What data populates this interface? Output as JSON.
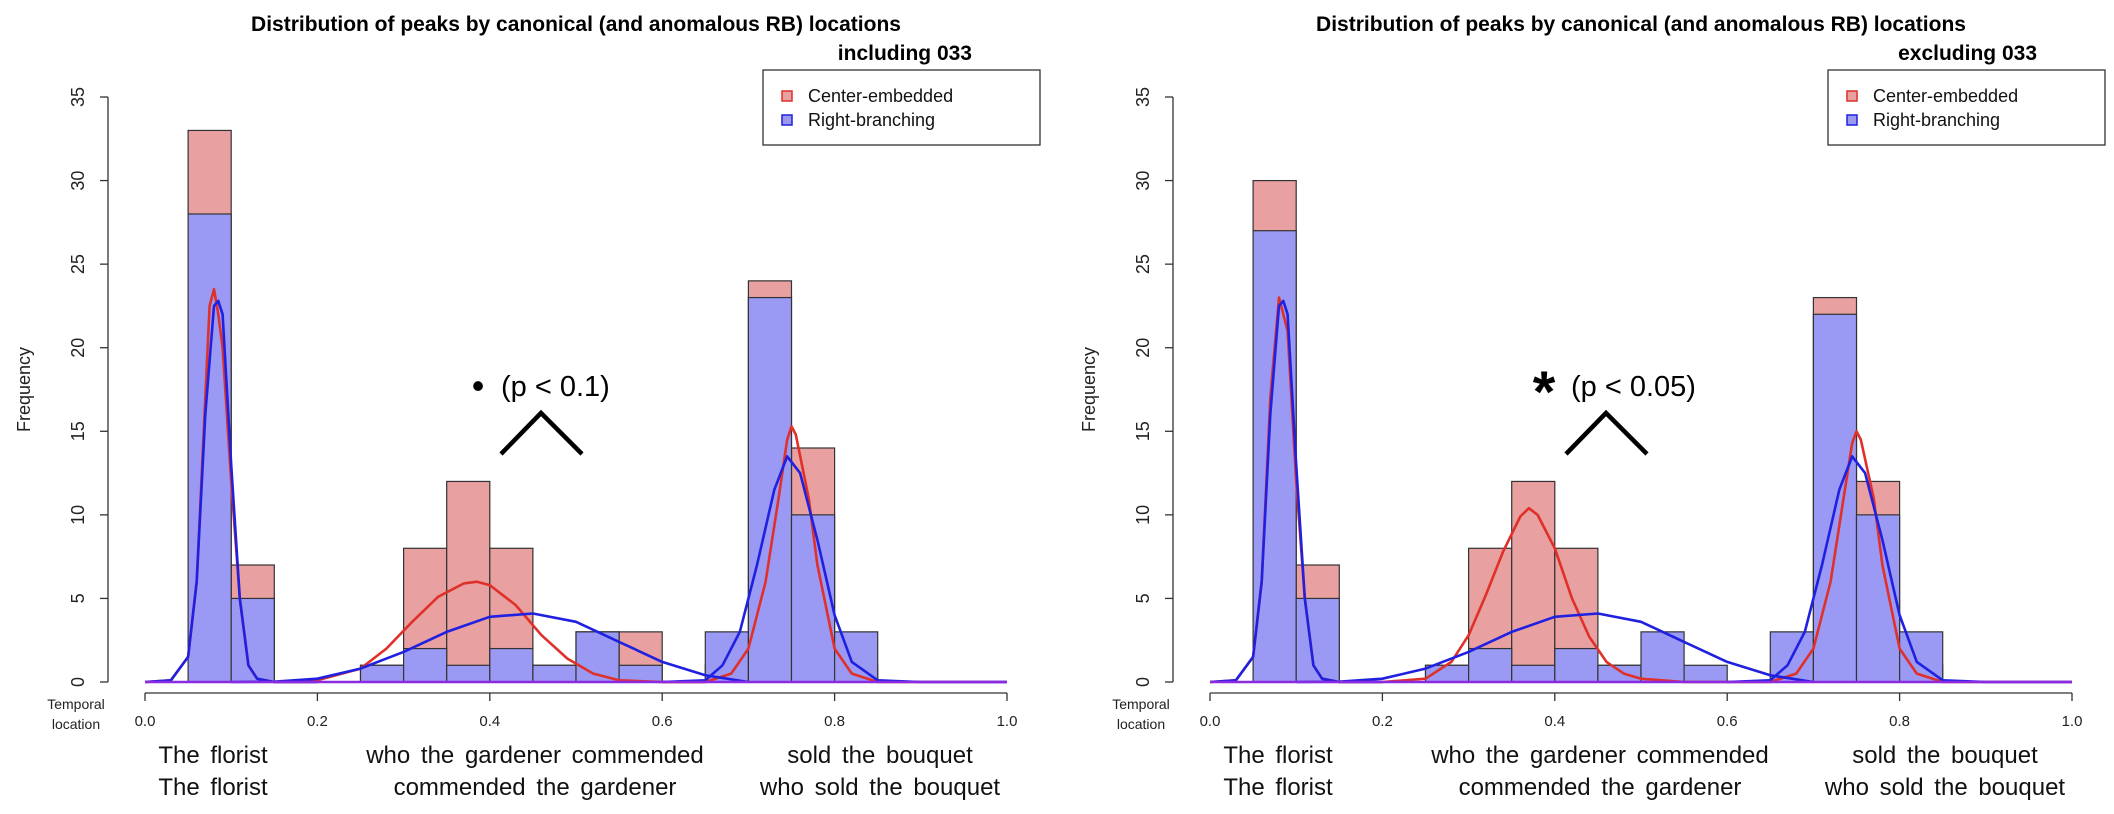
{
  "colors": {
    "ce_fill": "#e8a0a0",
    "rb_fill": "#9a9af5",
    "ce_line": "#e0302a",
    "rb_line": "#2020e0",
    "axis_line": "#8a2be2"
  },
  "chart_data": [
    {
      "type": "bar",
      "title_line1": "Distribution of peaks by canonical (and anomalous RB) locations",
      "title_line2": "including 033",
      "ylabel": "Frequency",
      "xlabel_line1": "Temporal",
      "xlabel_line2": "location",
      "xlim": [
        0,
        1
      ],
      "ylim": [
        0,
        35
      ],
      "xticks": [
        "0.0",
        "0.2",
        "0.4",
        "0.6",
        "0.8",
        "1.0"
      ],
      "yticks": [
        "0",
        "5",
        "10",
        "15",
        "20",
        "25",
        "30",
        "35"
      ],
      "bin_width": 0.05,
      "legend": {
        "position": "top-right",
        "entries": [
          "Center-embedded",
          "Right-branching"
        ]
      },
      "annotation": {
        "symbol": "•",
        "text": "(p < 0.1)"
      },
      "series": [
        {
          "name": "Center-embedded",
          "bins": [
            [
              0.05,
              33
            ],
            [
              0.1,
              7
            ],
            [
              0.25,
              1
            ],
            [
              0.3,
              8
            ],
            [
              0.35,
              12
            ],
            [
              0.4,
              8
            ],
            [
              0.45,
              1
            ],
            [
              0.5,
              3
            ],
            [
              0.55,
              3
            ],
            [
              0.65,
              1
            ],
            [
              0.7,
              24
            ],
            [
              0.75,
              14
            ],
            [
              0.8,
              1
            ]
          ]
        },
        {
          "name": "Right-branching",
          "bins": [
            [
              0.05,
              28
            ],
            [
              0.1,
              5
            ],
            [
              0.25,
              1
            ],
            [
              0.3,
              2
            ],
            [
              0.35,
              1
            ],
            [
              0.4,
              2
            ],
            [
              0.45,
              1
            ],
            [
              0.5,
              3
            ],
            [
              0.55,
              1
            ],
            [
              0.65,
              3
            ],
            [
              0.7,
              23
            ],
            [
              0.75,
              10
            ],
            [
              0.8,
              3
            ]
          ]
        }
      ],
      "curves": {
        "Center-embedded": [
          {
            "x": [
              0.0,
              0.03,
              0.05,
              0.06,
              0.07,
              0.075,
              0.08,
              0.085,
              0.09,
              0.1,
              0.11,
              0.12,
              0.13,
              0.15,
              0.2
            ],
            "y": [
              0,
              0.1,
              1.5,
              6,
              17,
              22.5,
              23.5,
              22,
              20,
              12,
              5,
              1,
              0.2,
              0,
              0
            ]
          },
          {
            "x": [
              0.15,
              0.2,
              0.25,
              0.28,
              0.31,
              0.34,
              0.37,
              0.385,
              0.4,
              0.43,
              0.46,
              0.49,
              0.52,
              0.55,
              0.6,
              0.65
            ],
            "y": [
              0,
              0.1,
              0.8,
              2,
              3.6,
              5.1,
              5.9,
              6,
              5.8,
              4.6,
              2.8,
              1.4,
              0.5,
              0.1,
              0,
              0
            ]
          },
          {
            "x": [
              0.6,
              0.65,
              0.68,
              0.7,
              0.72,
              0.735,
              0.745,
              0.75,
              0.755,
              0.77,
              0.78,
              0.8,
              0.82,
              0.85,
              0.9,
              1.0
            ],
            "y": [
              0,
              0,
              0.5,
              2,
              6,
              11,
              14.5,
              15.3,
              14.8,
              11,
              7,
              2,
              0.5,
              0,
              0,
              0
            ]
          }
        ],
        "Right-branching": [
          {
            "x": [
              0.0,
              0.03,
              0.05,
              0.06,
              0.07,
              0.08,
              0.085,
              0.09,
              0.1,
              0.11,
              0.12,
              0.13,
              0.15,
              0.2
            ],
            "y": [
              0,
              0.1,
              1.5,
              6,
              16,
              22.5,
              22.8,
              22,
              13,
              5,
              1,
              0.2,
              0,
              0
            ]
          },
          {
            "x": [
              0.1,
              0.15,
              0.2,
              0.25,
              0.3,
              0.35,
              0.4,
              0.45,
              0.5,
              0.55,
              0.6,
              0.65,
              0.7
            ],
            "y": [
              0,
              0.02,
              0.2,
              0.8,
              1.8,
              3,
              3.9,
              4.1,
              3.6,
              2.4,
              1.2,
              0.4,
              0
            ]
          },
          {
            "x": [
              0.6,
              0.65,
              0.67,
              0.69,
              0.71,
              0.73,
              0.745,
              0.76,
              0.78,
              0.8,
              0.82,
              0.85,
              0.9,
              1.0
            ],
            "y": [
              0,
              0.1,
              1,
              3,
              7,
              11.5,
              13.5,
              12.5,
              8.5,
              4,
              1.2,
              0.1,
              0,
              0
            ]
          }
        ]
      },
      "sentences": {
        "ce": [
          "The florist",
          "who the gardener commended",
          "sold the bouquet"
        ],
        "rb": [
          "The florist",
          "commended the gardener",
          "who sold the bouquet"
        ]
      }
    },
    {
      "type": "bar",
      "title_line1": "Distribution of peaks by canonical (and anomalous RB) locations",
      "title_line2": "excluding 033",
      "ylabel": "Frequency",
      "xlabel_line1": "Temporal",
      "xlabel_line2": "location",
      "xlim": [
        0,
        1
      ],
      "ylim": [
        0,
        35
      ],
      "xticks": [
        "0.0",
        "0.2",
        "0.4",
        "0.6",
        "0.8",
        "1.0"
      ],
      "yticks": [
        "0",
        "5",
        "10",
        "15",
        "20",
        "25",
        "30",
        "35"
      ],
      "bin_width": 0.05,
      "legend": {
        "position": "top-right",
        "entries": [
          "Center-embedded",
          "Right-branching"
        ]
      },
      "annotation": {
        "symbol": "*",
        "text": "(p < 0.05)"
      },
      "series": [
        {
          "name": "Center-embedded",
          "bins": [
            [
              0.05,
              30
            ],
            [
              0.1,
              7
            ],
            [
              0.25,
              1
            ],
            [
              0.3,
              8
            ],
            [
              0.35,
              12
            ],
            [
              0.4,
              8
            ],
            [
              0.45,
              1
            ],
            [
              0.65,
              1
            ],
            [
              0.7,
              23
            ],
            [
              0.75,
              12
            ],
            [
              0.8,
              1
            ]
          ]
        },
        {
          "name": "Right-branching",
          "bins": [
            [
              0.05,
              27
            ],
            [
              0.1,
              5
            ],
            [
              0.25,
              1
            ],
            [
              0.3,
              2
            ],
            [
              0.35,
              1
            ],
            [
              0.4,
              2
            ],
            [
              0.45,
              1
            ],
            [
              0.5,
              3
            ],
            [
              0.55,
              1
            ],
            [
              0.65,
              3
            ],
            [
              0.7,
              22
            ],
            [
              0.75,
              10
            ],
            [
              0.8,
              3
            ]
          ]
        }
      ],
      "curves": {
        "Center-embedded": [
          {
            "x": [
              0.0,
              0.03,
              0.05,
              0.06,
              0.07,
              0.08,
              0.09,
              0.1,
              0.11,
              0.12,
              0.13,
              0.15,
              0.2
            ],
            "y": [
              0,
              0.1,
              1.5,
              6,
              17,
              23,
              21,
              12,
              5,
              1,
              0.2,
              0,
              0
            ]
          },
          {
            "x": [
              0.2,
              0.25,
              0.28,
              0.3,
              0.32,
              0.34,
              0.36,
              0.37,
              0.38,
              0.4,
              0.42,
              0.44,
              0.46,
              0.48,
              0.5,
              0.55,
              0.6
            ],
            "y": [
              0,
              0.2,
              1.2,
              2.8,
              5.2,
              7.8,
              9.9,
              10.4,
              10,
              8,
              5,
              2.7,
              1.2,
              0.5,
              0.2,
              0,
              0
            ]
          },
          {
            "x": [
              0.6,
              0.65,
              0.68,
              0.7,
              0.72,
              0.735,
              0.745,
              0.75,
              0.755,
              0.77,
              0.78,
              0.8,
              0.82,
              0.85,
              0.9,
              1.0
            ],
            "y": [
              0,
              0,
              0.5,
              2,
              6,
              11,
              14.3,
              15,
              14.5,
              11,
              7,
              2,
              0.5,
              0,
              0,
              0
            ]
          }
        ],
        "Right-branching": [
          {
            "x": [
              0.0,
              0.03,
              0.05,
              0.06,
              0.07,
              0.08,
              0.085,
              0.09,
              0.1,
              0.11,
              0.12,
              0.13,
              0.15,
              0.2
            ],
            "y": [
              0,
              0.1,
              1.5,
              6,
              16,
              22.5,
              22.8,
              22,
              13,
              5,
              1,
              0.2,
              0,
              0
            ]
          },
          {
            "x": [
              0.1,
              0.15,
              0.2,
              0.25,
              0.3,
              0.35,
              0.4,
              0.45,
              0.5,
              0.55,
              0.6,
              0.65,
              0.7
            ],
            "y": [
              0,
              0.02,
              0.2,
              0.8,
              1.8,
              3,
              3.9,
              4.1,
              3.6,
              2.4,
              1.2,
              0.4,
              0
            ]
          },
          {
            "x": [
              0.6,
              0.65,
              0.67,
              0.69,
              0.71,
              0.73,
              0.745,
              0.76,
              0.78,
              0.8,
              0.82,
              0.85,
              0.9,
              1.0
            ],
            "y": [
              0,
              0.1,
              1,
              3,
              7,
              11.5,
              13.5,
              12.5,
              8.5,
              4,
              1.2,
              0.1,
              0,
              0
            ]
          }
        ]
      },
      "sentences": {
        "ce": [
          "The florist",
          "who the gardener commended",
          "sold the bouquet"
        ],
        "rb": [
          "The florist",
          "commended the gardener",
          "who sold the bouquet"
        ]
      }
    }
  ]
}
